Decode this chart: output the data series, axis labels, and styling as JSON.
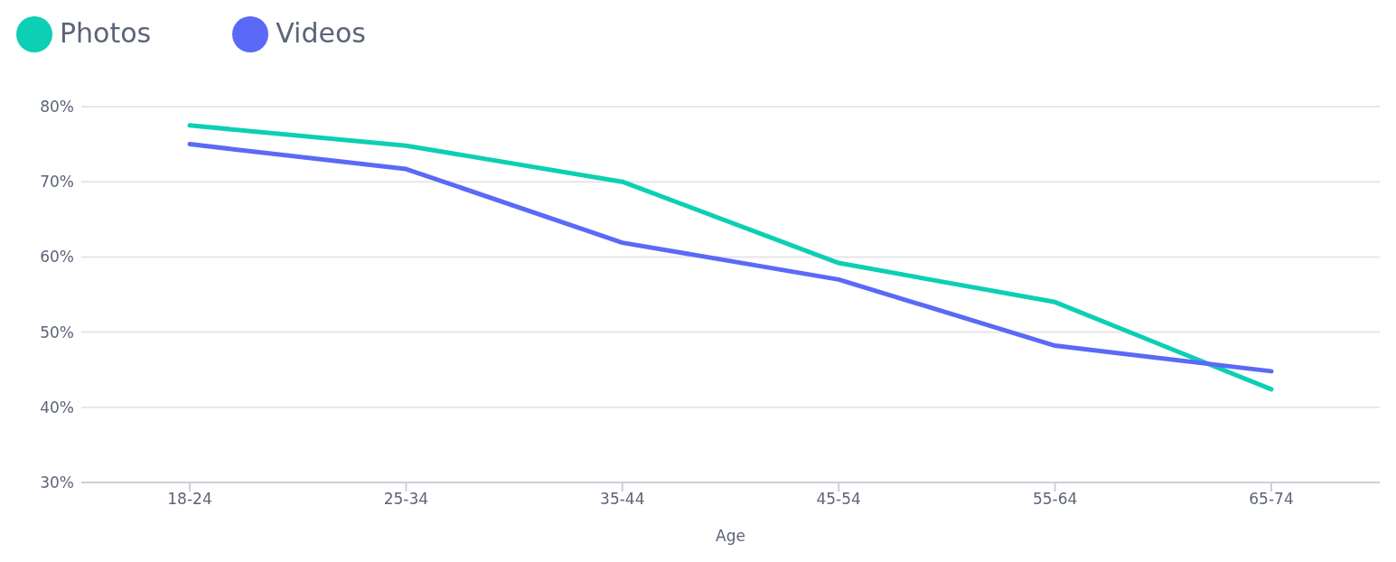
{
  "chart_data": {
    "type": "line",
    "xlabel": "Age",
    "categories": [
      "18-24",
      "25-34",
      "35-44",
      "45-54",
      "55-64",
      "65-74"
    ],
    "series": [
      {
        "name": "Photos",
        "color": "#0ccfb4",
        "values": [
          77.5,
          74.8,
          70,
          59.2,
          54,
          42.4
        ]
      },
      {
        "name": "Videos",
        "color": "#5a6af6",
        "values": [
          75,
          71.7,
          61.9,
          57,
          48.2,
          44.8
        ]
      }
    ],
    "ylim": [
      30,
      80
    ],
    "yticks": [
      {
        "value": 30,
        "label": "30%"
      },
      {
        "value": 40,
        "label": "40%"
      },
      {
        "value": 50,
        "label": "50%"
      },
      {
        "value": 60,
        "label": "60%"
      },
      {
        "value": 70,
        "label": "70%"
      },
      {
        "value": 80,
        "label": "80%"
      }
    ],
    "grid": "y",
    "legend": "top left",
    "marker": "none",
    "line_style": "solid"
  }
}
